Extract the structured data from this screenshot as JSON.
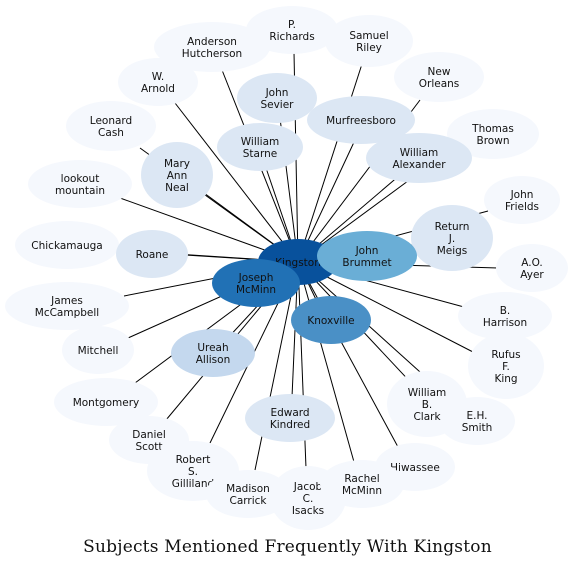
{
  "title": "Subjects Mentioned Frequently With Kingston",
  "colors": {
    "level0": "#f5f8fd",
    "level1": "#dce7f4",
    "level2": "#c4d8ee",
    "level3": "#6aaed6",
    "level4": "#4a90c6",
    "level5": "#2171b5",
    "level6": "#08519c",
    "edge": "#000000",
    "text": "#111111"
  },
  "center": "Kingston",
  "nodes": [
    {
      "id": "kingston",
      "label": "Kingston",
      "level": 6
    },
    {
      "id": "p-richards",
      "label": "P.\nRichards",
      "level": 0
    },
    {
      "id": "samuel-riley",
      "label": "Samuel\nRiley",
      "level": 0
    },
    {
      "id": "anderson-hutcherson",
      "label": "Anderson\nHutcherson",
      "level": 0
    },
    {
      "id": "new-orleans",
      "label": "New\nOrleans",
      "level": 0
    },
    {
      "id": "w-arnold",
      "label": "W.\nArnold",
      "level": 0
    },
    {
      "id": "john-sevier",
      "label": "John\nSevier",
      "level": 1
    },
    {
      "id": "murfreesboro",
      "label": "Murfreesboro",
      "level": 1
    },
    {
      "id": "leonard-cash",
      "label": "Leonard\nCash",
      "level": 0
    },
    {
      "id": "thomas-brown",
      "label": "Thomas\nBrown",
      "level": 0
    },
    {
      "id": "william-starne",
      "label": "William\nStarne",
      "level": 1
    },
    {
      "id": "william-alexander",
      "label": "William\nAlexander",
      "level": 1
    },
    {
      "id": "mary-ann-neal",
      "label": "Mary\nAnn\nNeal",
      "level": 1
    },
    {
      "id": "lookout-mountain",
      "label": "lookout\nmountain",
      "level": 0
    },
    {
      "id": "john-frields",
      "label": "John\nFrields",
      "level": 0
    },
    {
      "id": "return-j-meigs",
      "label": "Return\nJ.\nMeigs",
      "level": 1
    },
    {
      "id": "chickamauga",
      "label": "Chickamauga",
      "level": 0
    },
    {
      "id": "roane",
      "label": "Roane",
      "level": 1
    },
    {
      "id": "john-brummet",
      "label": "John\nBrummet",
      "level": 3
    },
    {
      "id": "ao-ayer",
      "label": "A.O.\nAyer",
      "level": 0
    },
    {
      "id": "joseph-mcminn",
      "label": "Joseph\nMcMinn",
      "level": 5
    },
    {
      "id": "james-mccampbell",
      "label": "James\nMcCampbell",
      "level": 0
    },
    {
      "id": "knoxville",
      "label": "Knoxville",
      "level": 4
    },
    {
      "id": "b-harrison",
      "label": "B.\nHarrison",
      "level": 0
    },
    {
      "id": "mitchell",
      "label": "Mitchell",
      "level": 0
    },
    {
      "id": "ureah-allison",
      "label": "Ureah\nAllison",
      "level": 2
    },
    {
      "id": "rufus-f-king",
      "label": "Rufus\nF.\nKing",
      "level": 0
    },
    {
      "id": "montgomery",
      "label": "Montgomery",
      "level": 0
    },
    {
      "id": "william-b-clark",
      "label": "William\nB.\nClark",
      "level": 0
    },
    {
      "id": "eh-smith",
      "label": "E.H.\nSmith",
      "level": 0
    },
    {
      "id": "edward-kindred",
      "label": "Edward\nKindred",
      "level": 1
    },
    {
      "id": "daniel-scott",
      "label": "Daniel\nScott",
      "level": 0
    },
    {
      "id": "hiwassee",
      "label": "Hiwassee",
      "level": 0
    },
    {
      "id": "robert-s-gilliland",
      "label": "Robert\nS.\nGilliland",
      "level": 0
    },
    {
      "id": "madison-carrick",
      "label": "Madison\nCarrick",
      "level": 0
    },
    {
      "id": "jacob-c-isacks",
      "label": "Jacob\nC.\nIsacks",
      "level": 0
    },
    {
      "id": "rachel-mcminn",
      "label": "Rachel\nMcMinn",
      "level": 0
    }
  ]
}
